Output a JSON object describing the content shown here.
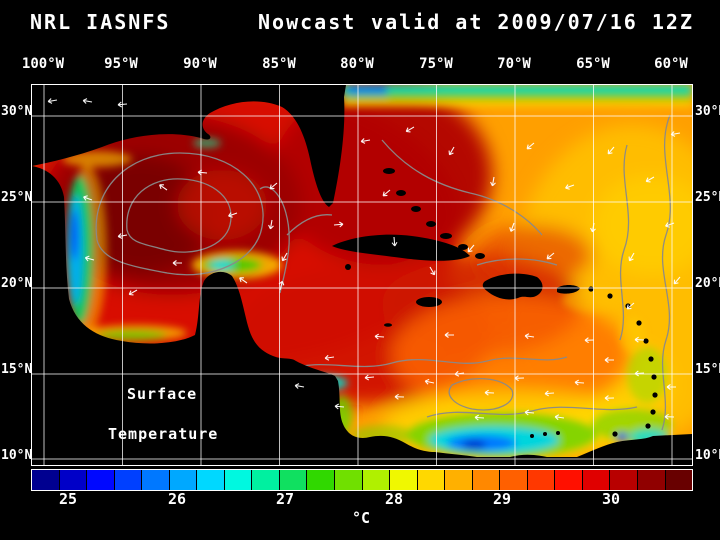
{
  "header": {
    "model": "NRL IASNFS",
    "product": "Nowcast",
    "valid": "valid at 2009/07/16 12Z"
  },
  "axes": {
    "lons": [
      "100°W",
      "95°W",
      "90°W",
      "85°W",
      "80°W",
      "75°W",
      "70°W",
      "65°W",
      "60°W"
    ],
    "lats_left": [
      "30°N",
      "25°N",
      "20°N",
      "15°N",
      "10°N"
    ],
    "lats_right": [
      "30°N",
      "25°N",
      "20°N",
      "15°N",
      "10°N"
    ]
  },
  "map": {
    "annotation": {
      "line1": "Surface",
      "line2": "Temperature"
    }
  },
  "colorbar": {
    "ticks": [
      "25",
      "26",
      "27",
      "28",
      "29",
      "30"
    ],
    "unit": "°C",
    "colors": [
      "#000090",
      "#0000c8",
      "#0008ff",
      "#0040ff",
      "#0078ff",
      "#00a8ff",
      "#00d8ff",
      "#00f8e0",
      "#00f0a0",
      "#10e060",
      "#30d800",
      "#70e000",
      "#b0f000",
      "#f0f800",
      "#ffd800",
      "#ffb000",
      "#ff8800",
      "#ff6000",
      "#ff3800",
      "#ff1000",
      "#e00000",
      "#b80000",
      "#900000",
      "#680000"
    ]
  }
}
